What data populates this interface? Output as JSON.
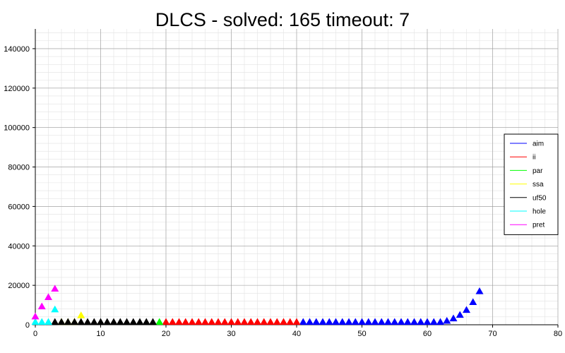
{
  "chart_data": {
    "type": "scatter",
    "title": "DLCS - solved: 165  timeout: 7",
    "xlabel": "",
    "ylabel": "",
    "xlim": [
      0,
      80
    ],
    "ylim": [
      0,
      150000
    ],
    "x_ticks": [
      0,
      10,
      20,
      30,
      40,
      50,
      60,
      70,
      80
    ],
    "y_ticks": [
      0,
      20000,
      40000,
      60000,
      80000,
      100000,
      120000,
      140000
    ],
    "x_tick_labels": [
      "0",
      "10",
      "20",
      "30",
      "40",
      "50",
      "60",
      "70",
      "80"
    ],
    "y_tick_labels": [
      "0",
      "20000",
      "40000",
      "60000",
      "80000",
      "100000",
      "120000",
      "140000"
    ],
    "grid": true,
    "legend_position": "right",
    "marker": "triangle",
    "series": [
      {
        "name": "aim",
        "color": "#0000ff",
        "x": [
          41,
          42,
          43,
          44,
          45,
          46,
          47,
          48,
          49,
          50,
          51,
          52,
          53,
          54,
          55,
          56,
          57,
          58,
          59,
          60,
          61,
          62,
          63,
          64,
          65,
          66,
          67,
          68
        ],
        "y": [
          100,
          100,
          100,
          100,
          100,
          100,
          100,
          100,
          100,
          100,
          150,
          150,
          150,
          150,
          200,
          200,
          250,
          300,
          350,
          400,
          600,
          1200,
          2000,
          3200,
          5000,
          7500,
          11500,
          17000
        ]
      },
      {
        "name": "ii",
        "color": "#ff0000",
        "x": [
          20,
          21,
          22,
          23,
          24,
          25,
          26,
          27,
          28,
          29,
          30,
          31,
          32,
          33,
          34,
          35,
          36,
          37,
          38,
          39,
          40
        ],
        "y": [
          100,
          100,
          100,
          100,
          100,
          100,
          100,
          100,
          100,
          100,
          100,
          100,
          100,
          100,
          150,
          150,
          150,
          150,
          200,
          200,
          250
        ]
      },
      {
        "name": "par",
        "color": "#00ff00",
        "x": [
          19
        ],
        "y": [
          800
        ]
      },
      {
        "name": "ssa",
        "color": "#ffff00",
        "x": [
          4,
          5,
          6,
          7
        ],
        "y": [
          200,
          300,
          600,
          4800
        ]
      },
      {
        "name": "uf50",
        "color": "#000000",
        "x": [
          3,
          4,
          5,
          6,
          7,
          8,
          9,
          10,
          11,
          12,
          13,
          14,
          15,
          16,
          17,
          18
        ],
        "y": [
          100,
          100,
          100,
          100,
          150,
          150,
          150,
          150,
          150,
          150,
          200,
          200,
          200,
          200,
          250,
          300
        ]
      },
      {
        "name": "hole",
        "color": "#00ffff",
        "x": [
          0,
          1,
          2,
          3
        ],
        "y": [
          200,
          500,
          1200,
          7800
        ]
      },
      {
        "name": "pret",
        "color": "#ff00ff",
        "x": [
          0,
          1,
          2,
          3
        ],
        "y": [
          4200,
          9300,
          14000,
          18300
        ]
      }
    ]
  }
}
